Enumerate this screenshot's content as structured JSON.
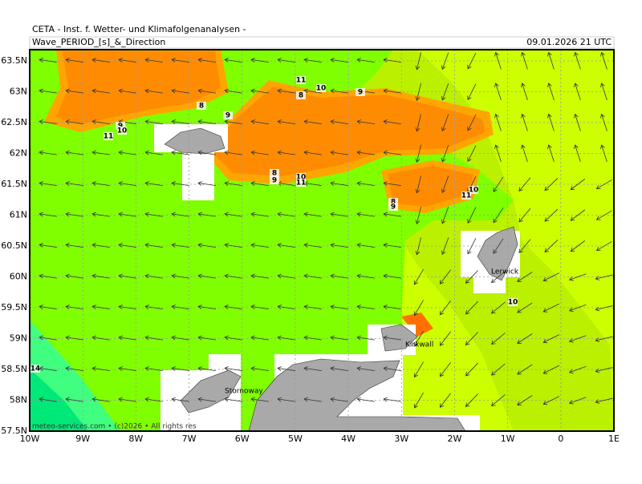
{
  "header": {
    "institute": "CETA - Inst. f. Wetter- und Klimafolgenanalysen -",
    "title": "Wave_PERIOD_[s]_&_Direction",
    "valid_time": "09.01.2026 21 UTC"
  },
  "axes": {
    "lon_labels": [
      "10W",
      "9W",
      "8W",
      "7W",
      "6W",
      "5W",
      "4W",
      "3W",
      "2W",
      "1W",
      "0",
      "1E"
    ],
    "lat_labels": [
      "63.5N",
      "63N",
      "62.5N",
      "62N",
      "61.5N",
      "61N",
      "60.5N",
      "60N",
      "59.5N",
      "59N",
      "58.5N",
      "58N",
      "57.5N"
    ]
  },
  "contour_labels": [
    "11",
    "10",
    "9",
    "8",
    "8",
    "9",
    "9",
    "10",
    "11",
    "8",
    "9",
    "10",
    "11",
    "8",
    "9",
    "10",
    "11",
    "10",
    "14"
  ],
  "places": [
    "Lerwick",
    "Kirkwall",
    "Stornoway"
  ],
  "footer": "meteo-services.com • (c)2026 • All rights res"
}
